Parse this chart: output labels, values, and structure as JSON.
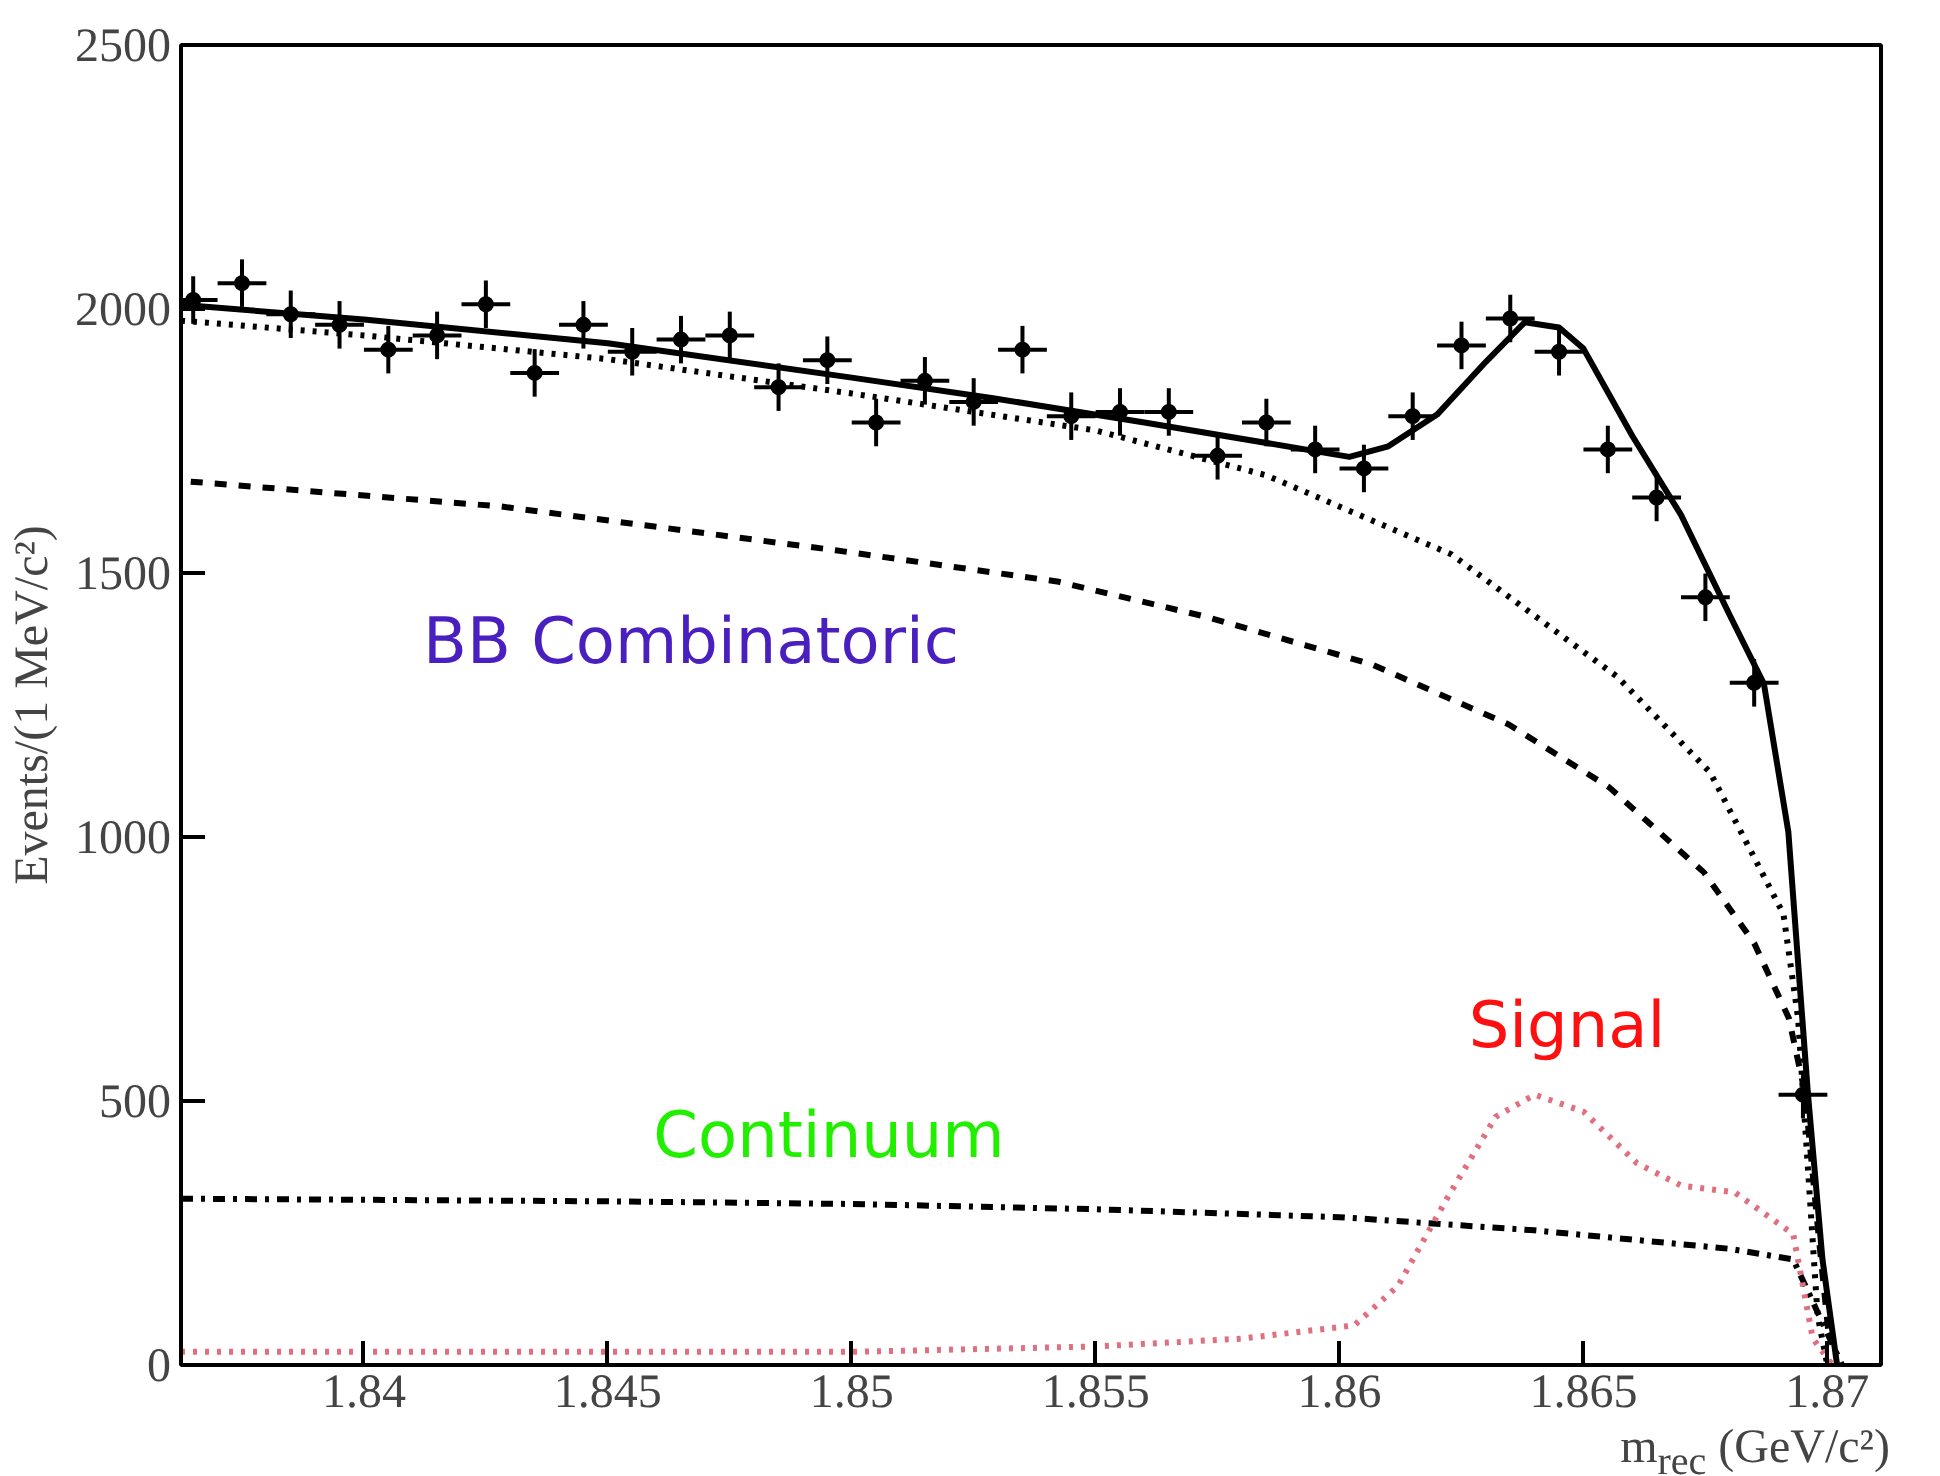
{
  "chart_data": {
    "type": "line",
    "xlabel": "m$_{rec}$ (GeV/c²)",
    "ylabel": "Events/(1 MeV/c²)",
    "xlim": [
      1.83625,
      1.8711
    ],
    "ylim": [
      0,
      2500
    ],
    "xticks": [
      1.84,
      1.845,
      1.85,
      1.855,
      1.86,
      1.865,
      1.87
    ],
    "yticks": [
      0,
      500,
      1000,
      1500,
      2000,
      2500
    ],
    "grid": false,
    "annotations": [
      "BB Combinatoric",
      "Continuum",
      "Signal"
    ],
    "series": [
      {
        "type": "scatter",
        "marker": "circle",
        "color": "#000000",
        "x": [
          1.8365,
          1.8375,
          1.8385,
          1.8395,
          1.8405,
          1.8415,
          1.8425,
          1.8435,
          1.8445,
          1.8455,
          1.8465,
          1.8475,
          1.8485,
          1.8495,
          1.8505,
          1.8515,
          1.8525,
          1.8535,
          1.8545,
          1.8555,
          1.8565,
          1.8575,
          1.8585,
          1.8595,
          1.8605,
          1.8615,
          1.8625,
          1.8635,
          1.8645,
          1.8655,
          1.8665,
          1.8675,
          1.8685,
          1.8695
        ],
        "values": [
          2017,
          2049,
          1990,
          1970,
          1923,
          1950,
          2009,
          1879,
          1970,
          1919,
          1942,
          1950,
          1852,
          1903,
          1785,
          1864,
          1824,
          1923,
          1797,
          1805,
          1805,
          1722,
          1785,
          1734,
          1698,
          1797,
          1931,
          1982,
          1919,
          1734,
          1643,
          1454,
          1292,
          512
        ],
        "errors": [
          45,
          45,
          45,
          45,
          45,
          45,
          45,
          45,
          45,
          45,
          45,
          45,
          45,
          45,
          45,
          45,
          45,
          45,
          45,
          45,
          45,
          45,
          45,
          45,
          45,
          45,
          45,
          45,
          45,
          45,
          45,
          45,
          45,
          45
        ],
        "xerrors": [
          0.0005,
          0.0005,
          0.0005,
          0.0005,
          0.0005,
          0.0005,
          0.0005,
          0.0005,
          0.0005,
          0.0005,
          0.0005,
          0.0005,
          0.0005,
          0.0005,
          0.0005,
          0.0005,
          0.0005,
          0.0005,
          0.0005,
          0.0005,
          0.0005,
          0.0005,
          0.0005,
          0.0005,
          0.0005,
          0.0005,
          0.0005,
          0.0005,
          0.0005,
          0.0005,
          0.0005,
          0.0005,
          0.0005,
          0.0005
        ]
      },
      {
        "line_style": "solid",
        "color": "#000000",
        "x": [
          1.83625,
          1.84,
          1.845,
          1.85,
          1.8529,
          1.856,
          1.8602,
          1.861,
          1.862,
          1.863,
          1.8638,
          1.8645,
          1.865,
          1.866,
          1.867,
          1.868,
          1.8687,
          1.8692,
          1.8696,
          1.8699,
          1.8702
        ],
        "values": [
          2008,
          1980,
          1935,
          1870,
          1831,
          1785,
          1720,
          1740,
          1800,
          1900,
          1975,
          1965,
          1925,
          1760,
          1610,
          1420,
          1290,
          1010,
          516,
          200,
          0
        ]
      },
      {
        "line_style": "dotted",
        "color": "#000000",
        "x": [
          1.83625,
          1.84,
          1.845,
          1.85,
          1.855,
          1.8585,
          1.8623,
          1.8657,
          1.8676,
          1.8691,
          1.8694,
          1.8698,
          1.87
        ],
        "values": [
          1978,
          1950,
          1905,
          1840,
          1770,
          1685,
          1535,
          1303,
          1122,
          854,
          657,
          94,
          0
        ]
      },
      {
        "line_style": "dashed",
        "color": "#000000",
        "x": [
          1.83645,
          1.84281,
          1.84967,
          1.85421,
          1.85727,
          1.86066,
          1.86347,
          1.86553,
          1.86747,
          1.8685,
          1.86921,
          1.86954,
          1.86983,
          1.87003
        ],
        "values": [
          1673,
          1626,
          1543,
          1484,
          1417,
          1327,
          1213,
          1094,
          933,
          799,
          657,
          516,
          236,
          55
        ]
      },
      {
        "line_style": "dashdot",
        "color": "#000000",
        "x": [
          1.83625,
          1.845,
          1.85,
          1.855,
          1.86,
          1.864,
          1.868,
          1.8693,
          1.8703
        ],
        "values": [
          315,
          310,
          305,
          295,
          280,
          255,
          220,
          200,
          0
        ]
      },
      {
        "line_style": "dotted",
        "color": "#e07080",
        "x": [
          1.83625,
          1.85,
          1.855,
          1.858,
          1.8603,
          1.8612,
          1.8622,
          1.8632,
          1.864,
          1.865,
          1.8661,
          1.867,
          1.8681,
          1.8693,
          1.8697,
          1.8701
        ],
        "values": [
          25,
          25,
          35,
          50,
          75,
          150,
          315,
          470,
          512,
          480,
          382,
          340,
          327,
          248,
          51,
          0
        ]
      }
    ]
  }
}
